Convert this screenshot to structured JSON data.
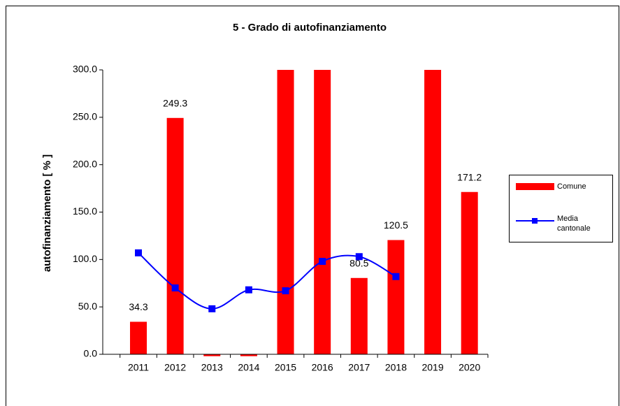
{
  "chart_data": {
    "type": "bar",
    "title": "5 - Grado di autofinanziamento",
    "y_label": "autofinanziamento [ % ]",
    "categories": [
      "2011",
      "2012",
      "2013",
      "2014",
      "2015",
      "2016",
      "2017",
      "2018",
      "2019",
      "2020"
    ],
    "series": [
      {
        "name": "Comune",
        "type": "bar",
        "color": "#ff0000",
        "values": [
          34.3,
          249.3,
          -2,
          -2,
          300,
          300,
          80.5,
          120.5,
          300,
          171.2
        ],
        "value_labels": [
          "34.3",
          "249.3",
          null,
          null,
          null,
          null,
          "80.5",
          "120.5",
          null,
          "171.2"
        ]
      },
      {
        "name": "Media cantonale",
        "type": "line",
        "color": "#0000ff",
        "values": [
          107,
          70,
          48,
          68,
          67,
          98,
          103,
          82,
          null,
          null
        ]
      }
    ],
    "ylim": [
      0,
      300
    ],
    "yticks": [
      {
        "value": 0,
        "label": "0.0"
      },
      {
        "value": 50,
        "label": "50.0"
      },
      {
        "value": 100,
        "label": "100.0"
      },
      {
        "value": 150,
        "label": "150.0"
      },
      {
        "value": 200,
        "label": "200.0"
      },
      {
        "value": 250,
        "label": "250.0"
      },
      {
        "value": 300,
        "label": "300.0"
      }
    ]
  }
}
